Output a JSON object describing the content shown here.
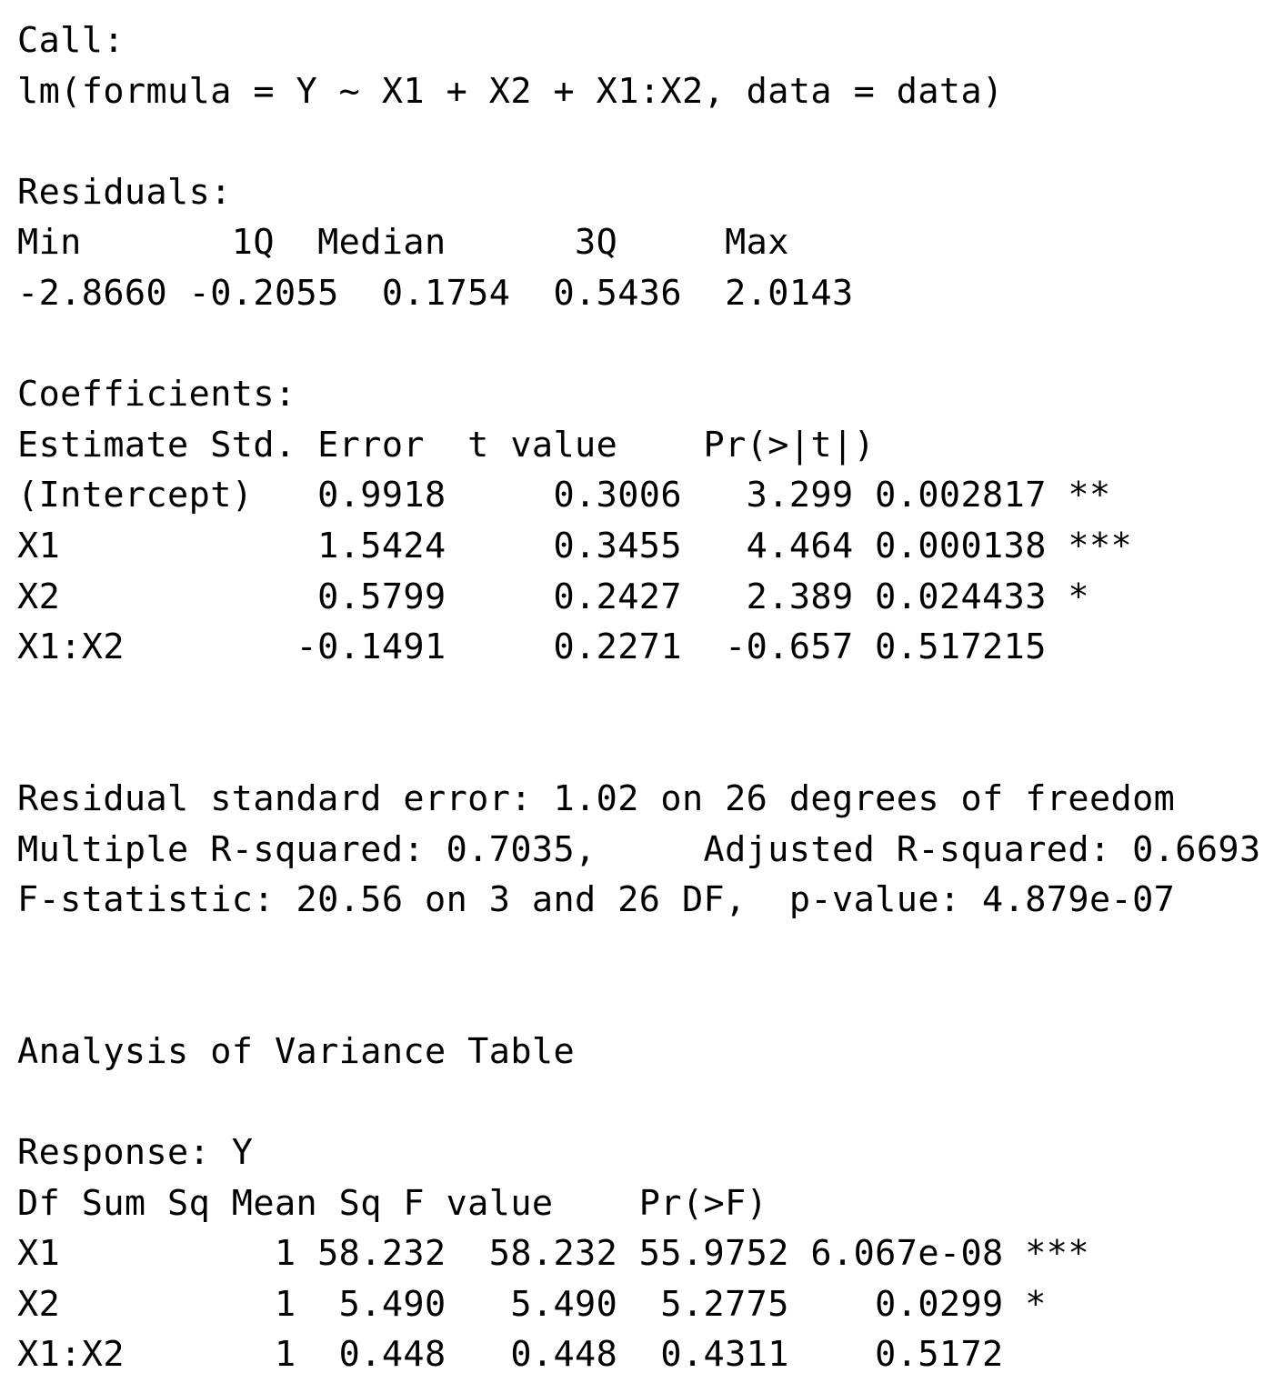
{
  "call": {
    "label": "Call:",
    "formula": "lm(formula = Y ~ X1 + X2 + X1:X2, data = data)"
  },
  "residuals": {
    "label": "Residuals:",
    "header": "Min       1Q  Median      3Q     Max",
    "values": "-2.8660 -0.2055  0.1754  0.5436  2.0143"
  },
  "coefficients": {
    "label": "Coefficients:",
    "header": "Estimate Std. Error  t value    Pr(>|t|)",
    "rows": [
      "(Intercept)   0.9918     0.3006   3.299 0.002817 **",
      "X1            1.5424     0.3455   4.464 0.000138 ***",
      "X2            0.5799     0.2427   2.389 0.024433 *",
      "X1:X2        -0.1491     0.2271  -0.657 0.517215"
    ]
  },
  "summary_stats": {
    "residual_se": "Residual standard error: 1.02 on 26 degrees of freedom",
    "r_squared": "Multiple R-squared: 0.7035,     Adjusted R-squared: 0.6693",
    "f_statistic": "F-statistic: 20.56 on 3 and 26 DF,  p-value: 4.879e-07"
  },
  "anova": {
    "title": "Analysis of Variance Table",
    "response": "Response: Y",
    "header": "Df Sum Sq Mean Sq F value    Pr(>F)",
    "rows": [
      "X1          1 58.232  58.232 55.9752 6.067e-08 ***",
      "X2          1  5.490   5.490  5.2775    0.0299 *",
      "X1:X2       1  0.448   0.448  0.4311    0.5172"
    ]
  }
}
